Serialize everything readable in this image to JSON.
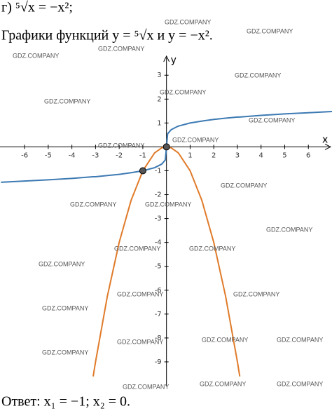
{
  "problem": "г) ⁵√x = −x²;",
  "statement": "Графики функций y = ⁵√x и y = −x².",
  "answer": "Ответ: x₁ = −1; x₂ = 0.",
  "watermarks": [
    "GDZ.COMPANY",
    "GDZ.COMPANY",
    "GDZ.COMPANY",
    "GDZ.COMPANY",
    "GDZ.COMPANY",
    "GDZ.COMPANY",
    "GDZ.COMPANY",
    "GDZ.COMPANY",
    "GDZ.COMPANY",
    "GDZ.COMPANY",
    "GDZ.COMPANY",
    "GDZ.COMPANY",
    "GDZ.COMPANY",
    "GDZ.COMPANY",
    "GDZ.COMPANY",
    "GDZ.COMPANY",
    "GDZ.COMPANY",
    "GDZ.COMPANY",
    "GDZ.COMPANY",
    "GDZ.COMPANY",
    "GDZ.COMPANY",
    "GDZ.COMPANY",
    "GDZ.COMPANY",
    "GDZ.COMPANY",
    "GDZ.COMPANY",
    "GDZ.COMPANY",
    "GDZ.COMPANY"
  ],
  "chart_data": {
    "type": "line",
    "x_label": "x",
    "y_label": "y",
    "x": [
      -7,
      -6,
      -5,
      -4,
      -3.1,
      -3,
      -2.5,
      -2,
      -1.5,
      -1,
      -0.5,
      -0.2,
      -0.05,
      0,
      0.05,
      0.2,
      0.5,
      1,
      1.5,
      2,
      2.5,
      3,
      3.1,
      4,
      5,
      6,
      7
    ],
    "series": [
      {
        "color": "#3d7ab3",
        "values": [
          -1.48,
          -1.43,
          -1.38,
          -1.32,
          -1.25,
          -1.25,
          -1.2,
          -1.15,
          -1.08,
          -1,
          -0.87,
          -0.72,
          -0.55,
          0,
          0.55,
          0.72,
          0.87,
          1,
          1.08,
          1.15,
          1.2,
          1.25,
          1.25,
          1.32,
          1.38,
          1.43,
          1.48
        ]
      },
      {
        "color": "#e07b2a",
        "values": [
          null,
          null,
          null,
          null,
          -9.61,
          -9,
          -6.25,
          -4,
          -2.25,
          -1,
          -0.25,
          -0.04,
          0,
          0,
          0,
          -0.04,
          -0.25,
          -1,
          -2.25,
          -4,
          -6.25,
          -9,
          -9.61,
          null,
          null,
          null,
          null
        ]
      }
    ],
    "points": {
      "color": "#555555",
      "x": [
        -1,
        0
      ],
      "y": [
        -1,
        0
      ]
    },
    "xlim": [
      -7.04,
      7.0
    ],
    "ylim": [
      -10,
      3.8
    ],
    "xticks": [
      -6,
      -5,
      -4,
      -3,
      -2,
      -1,
      1,
      2,
      3,
      4,
      5,
      6
    ],
    "yticks": [
      3,
      2,
      1,
      -1,
      -2,
      -3,
      -4,
      -5,
      -6,
      -7,
      -8,
      -9
    ]
  }
}
